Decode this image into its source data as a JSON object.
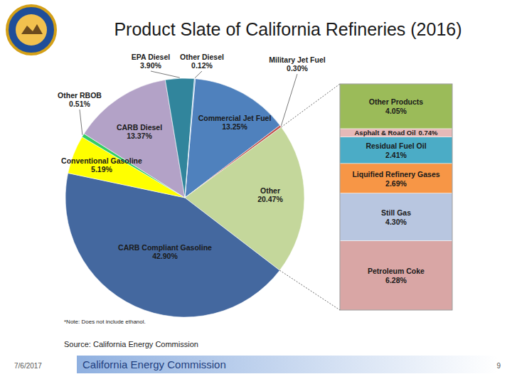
{
  "chart_data": [
    {
      "type": "pie",
      "title": "Product Slate of California Refineries (2016)",
      "categories": [
        "Commercial Jet Fuel",
        "Military Jet Fuel",
        "Other",
        "CARB Compliant Gasoline",
        "Conventional Gasoline",
        "Other RBOB",
        "CARB Diesel",
        "EPA Diesel",
        "Other Diesel"
      ],
      "values": [
        13.25,
        0.3,
        20.47,
        42.9,
        5.19,
        0.51,
        13.37,
        3.9,
        0.12
      ],
      "value_labels": [
        "13.25%",
        "0.30%",
        "20.47%",
        "42.90%",
        "5.19%",
        "0.51%",
        "13.37%",
        "3.90%",
        "0.12%"
      ],
      "colors": [
        "#4f81bd",
        "#c0504d",
        "#c4d79b",
        "#44689f",
        "#ffff00",
        "#33cc66",
        "#b3a2c7",
        "#31859c",
        "#8eb4e3"
      ],
      "data_labels": true
    },
    {
      "type": "bar",
      "stacked": true,
      "categories": [
        null
      ],
      "ylim": [
        0,
        20.47
      ],
      "tick_labels": false,
      "data_labels": true,
      "series": [
        {
          "name": "Petroleum Coke",
          "color": "#d9a6a5",
          "values": [
            6.28
          ],
          "value_labels": [
            "6.28%"
          ]
        },
        {
          "name": "Still Gas",
          "color": "#b8c6e0",
          "values": [
            4.3
          ],
          "value_labels": [
            "4.30%"
          ]
        },
        {
          "name": "Liquified Refinery Gases",
          "color": "#f79646",
          "values": [
            2.69
          ],
          "value_labels": [
            "2.69%"
          ]
        },
        {
          "name": "Residual Fuel Oil",
          "color": "#4bacc6",
          "values": [
            2.41
          ],
          "value_labels": [
            "2.41%"
          ]
        },
        {
          "name": "Asphalt & Road Oil",
          "color": "#e6b9b8",
          "values": [
            0.74
          ],
          "value_labels": [
            "0.74%"
          ]
        },
        {
          "name": "Other Products",
          "color": "#9bbb59",
          "values": [
            4.05
          ],
          "value_labels": [
            "4.05%"
          ]
        }
      ]
    }
  ],
  "slide": {
    "note": "*Note: Does not include ethanol.",
    "source": "Source: California Energy Commission",
    "date": "7/6/2017",
    "footer": "California Energy Commission",
    "page": 9
  }
}
